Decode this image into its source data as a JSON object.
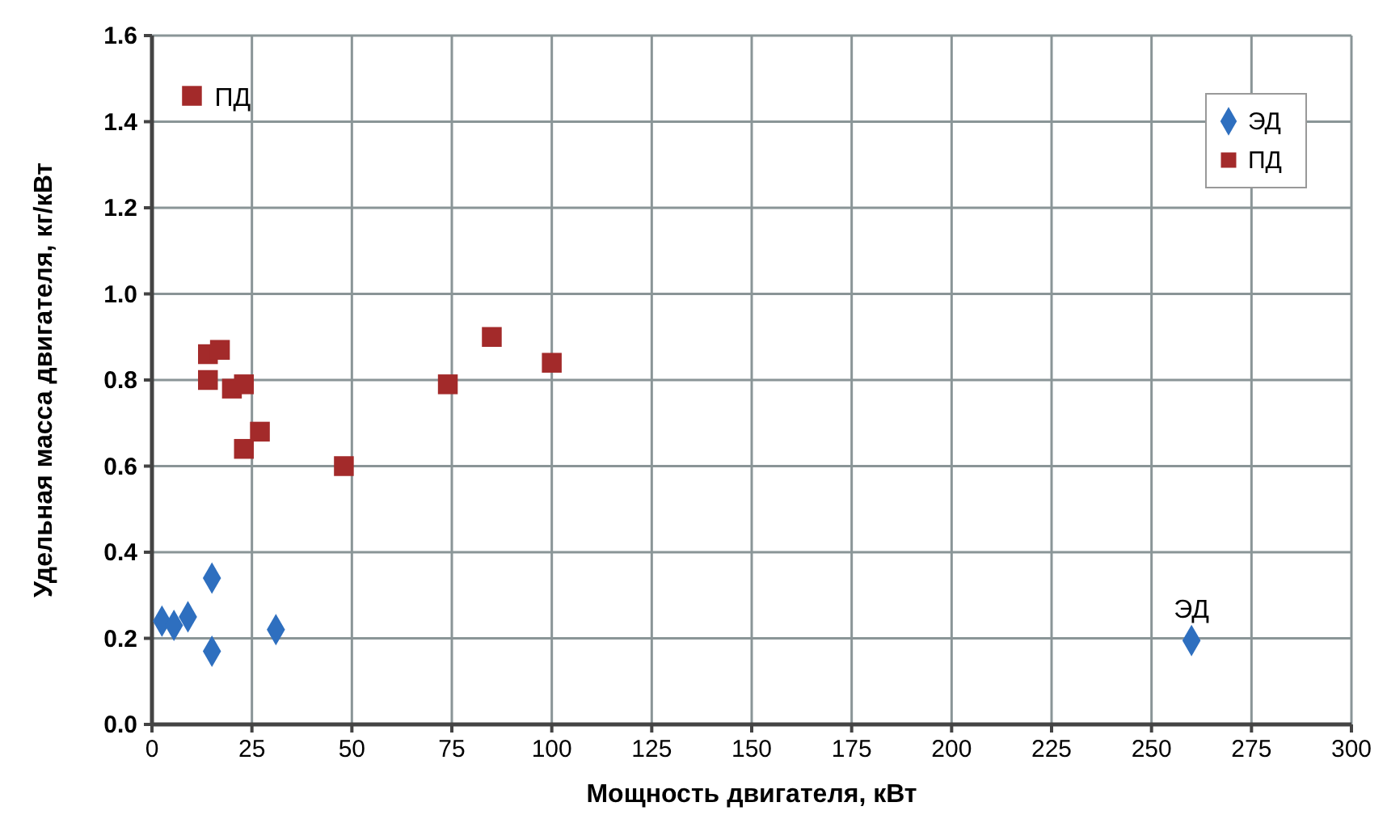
{
  "chart_data": {
    "type": "scatter",
    "xlabel": "Мощность двигателя, кВт",
    "ylabel": "Удельная масса двигателя, кг/кВт",
    "xlim": [
      0,
      300
    ],
    "xticks": [
      0,
      25,
      50,
      75,
      100,
      125,
      150,
      175,
      200,
      225,
      250,
      275,
      300
    ],
    "ylim": [
      0,
      1.6
    ],
    "yticks": [
      {
        "value": 0,
        "label": "0.0"
      },
      {
        "value": 0.2,
        "label": "0.2"
      },
      {
        "value": 0.4,
        "label": "0.4"
      },
      {
        "value": 0.6,
        "label": "0.6"
      },
      {
        "value": 0.8,
        "label": "0.8"
      },
      {
        "value": 1,
        "label": "1.0"
      },
      {
        "value": 1.2,
        "label": "1.2"
      },
      {
        "value": 1.4,
        "label": "1.4"
      },
      {
        "value": 1.6,
        "label": "1.6"
      }
    ],
    "grid": true,
    "legend": "top right",
    "series": [
      {
        "name": "ЭД",
        "color": "#2e6fbf",
        "marker": "diamond",
        "x": [
          2.5,
          5.5,
          9,
          15,
          15,
          31,
          260
        ],
        "values": [
          0.24,
          0.23,
          0.25,
          0.34,
          0.17,
          0.22,
          0.195
        ]
      },
      {
        "name": "ПД",
        "color": "#a32a2a",
        "marker": "square",
        "x": [
          10,
          14,
          17,
          14,
          20,
          23,
          23,
          27,
          48,
          74,
          85,
          100
        ],
        "values": [
          1.46,
          0.86,
          0.87,
          0.8,
          0.78,
          0.79,
          0.64,
          0.68,
          0.6,
          0.79,
          0.9,
          0.84
        ]
      }
    ],
    "annotations": [
      {
        "text": "ПД",
        "x": 10,
        "y": 1.46
      },
      {
        "text": "ЭД",
        "x": 260,
        "y": 0.195
      }
    ]
  }
}
